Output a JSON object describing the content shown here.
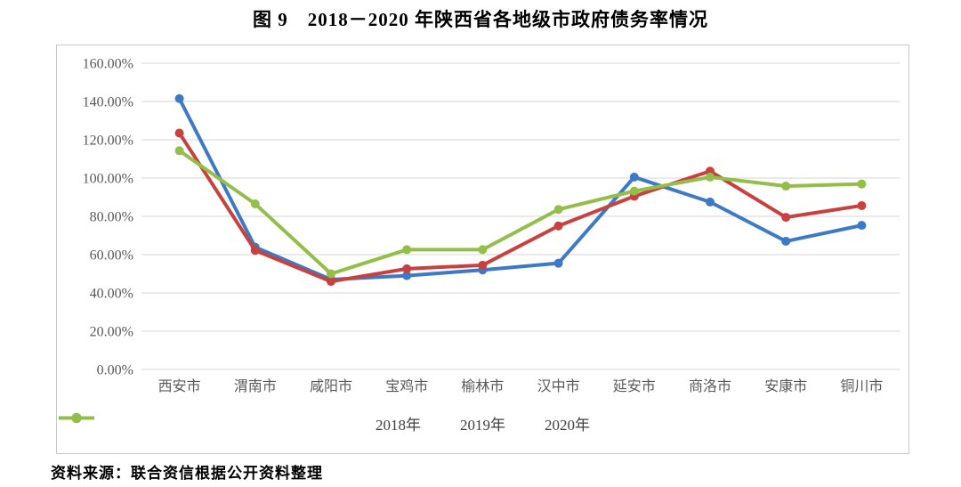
{
  "page": {
    "title": "图 9　2018－2020 年陕西省各地级市政府债务率情况",
    "source": "资料来源：联合资信根据公开资料整理"
  },
  "colors": {
    "grid": "#d6d6d6",
    "chart_border": "#c9c9c9",
    "axis_text": "#595959",
    "series_2018": "#3e79c5",
    "series_2019": "#c8413e",
    "series_2020": "#93be4a"
  },
  "chart_data": {
    "type": "line",
    "title": "图 9　2018－2020 年陕西省各地级市政府债务率情况",
    "categories": [
      "西安市",
      "渭南市",
      "咸阳市",
      "宝鸡市",
      "榆林市",
      "汉中市",
      "延安市",
      "商洛市",
      "安康市",
      "铜川市"
    ],
    "series": [
      {
        "name": "2018年",
        "color": "#3e79c5",
        "values": [
          141.5,
          63.9,
          47.0,
          49.0,
          52.0,
          55.5,
          100.5,
          87.5,
          67.0,
          75.3
        ]
      },
      {
        "name": "2019年",
        "color": "#c8413e",
        "values": [
          123.5,
          62.2,
          46.0,
          52.6,
          54.5,
          75.0,
          90.5,
          103.6,
          79.5,
          85.6
        ]
      },
      {
        "name": "2020年",
        "color": "#93be4a",
        "values": [
          114.3,
          86.5,
          50.0,
          62.6,
          62.6,
          83.6,
          93.2,
          100.5,
          95.8,
          96.9
        ]
      }
    ],
    "xlabel": "",
    "ylabel": "",
    "ylim": [
      0,
      160
    ],
    "y_tick_step": 20,
    "y_tick_labels": [
      "0.00%",
      "20.00%",
      "40.00%",
      "60.00%",
      "80.00%",
      "100.00%",
      "120.00%",
      "140.00%",
      "160.00%"
    ],
    "grid": true,
    "legend_position": "bottom",
    "marker": "circle"
  }
}
